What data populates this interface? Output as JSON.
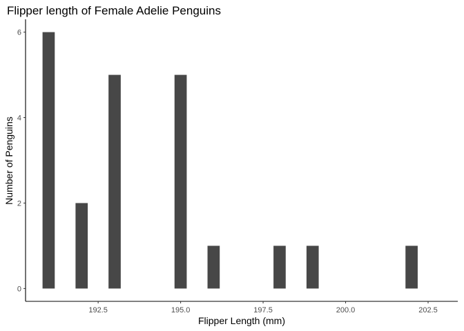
{
  "chart_data": {
    "type": "bar",
    "title": "Flipper length of Female Adelie Penguins",
    "xlabel": "Flipper Length (mm)",
    "ylabel": "Number of Penguins",
    "x_ticks": [
      192.5,
      195.0,
      197.5,
      200.0,
      202.5
    ],
    "x_tick_labels": [
      "192.5",
      "195.0",
      "197.5",
      "200.0",
      "202.5"
    ],
    "y_ticks": [
      0,
      2,
      4,
      6
    ],
    "y_tick_labels": [
      "0",
      "2",
      "4",
      "6"
    ],
    "xlim": [
      190.3,
      203.4
    ],
    "ylim": [
      -0.3,
      6.3
    ],
    "bin_width": 0.37,
    "bins": [
      {
        "x": 191.0,
        "count": 6
      },
      {
        "x": 192.0,
        "count": 2
      },
      {
        "x": 193.0,
        "count": 5
      },
      {
        "x": 195.0,
        "count": 5
      },
      {
        "x": 196.0,
        "count": 1
      },
      {
        "x": 198.0,
        "count": 1
      },
      {
        "x": 199.0,
        "count": 1
      },
      {
        "x": 202.0,
        "count": 1
      }
    ],
    "bar_color": "#474747",
    "grid": false,
    "legend": "none"
  }
}
